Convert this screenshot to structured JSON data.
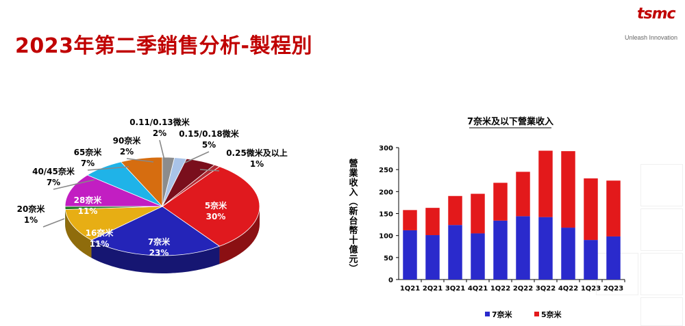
{
  "page": {
    "title": "2023年第二季銷售分析-製程別",
    "logo_text": "tsmc",
    "logo_tagline": "Unleash Innovation"
  },
  "chart_data": [
    {
      "type": "pie",
      "categories": [
        "5奈米",
        "7奈米",
        "16奈米",
        "20奈米",
        "28奈米",
        "40/45奈米",
        "65奈米",
        "90奈米",
        "0.11/0.13微米",
        "0.15/0.18微米",
        "0.25微米及以上"
      ],
      "values": [
        30,
        23,
        11,
        1,
        11,
        7,
        7,
        2,
        2,
        5,
        1
      ],
      "labels": [
        "30%",
        "23%",
        "11%",
        "1%",
        "11%",
        "7%",
        "7%",
        "2%",
        "2%",
        "5%",
        "1%"
      ],
      "colors": [
        "#e0191e",
        "#2424b8",
        "#e7ae14",
        "#1f7a1f",
        "#c21ec2",
        "#1fb3e8",
        "#d66d10",
        "#8c8c8c",
        "#a9c3e8",
        "#7a0f1c",
        "#b02a33"
      ]
    },
    {
      "type": "bar",
      "title": "7奈米及以下營業收入",
      "ylabel": "營業收入（新台幣十億元）",
      "categories": [
        "1Q21",
        "2Q21",
        "3Q21",
        "4Q21",
        "1Q22",
        "2Q22",
        "3Q22",
        "4Q22",
        "1Q23",
        "2Q23"
      ],
      "series": [
        {
          "name": "7奈米",
          "color": "#2a2acc",
          "values": [
            112,
            101,
            124,
            105,
            134,
            144,
            142,
            118,
            90,
            98
          ]
        },
        {
          "name": "5奈米",
          "color": "#e3191b",
          "values": [
            46,
            62,
            66,
            90,
            86,
            101,
            151,
            174,
            140,
            127
          ]
        }
      ],
      "ylim": [
        0,
        300
      ],
      "yticks": [
        "0",
        "50",
        "100",
        "150",
        "200",
        "250",
        "300"
      ],
      "stacked": true,
      "legend": "bottom"
    }
  ]
}
